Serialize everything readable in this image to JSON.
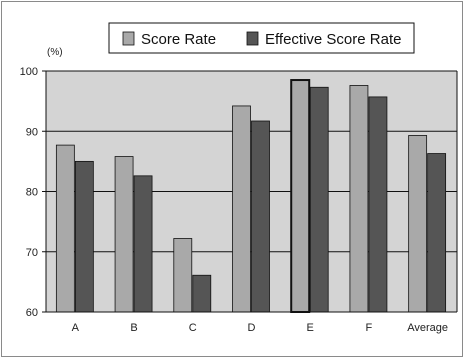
{
  "chart_data": {
    "type": "bar",
    "unit_label": "(%)",
    "categories": [
      "A",
      "B",
      "C",
      "D",
      "E",
      "F",
      "Average"
    ],
    "series": [
      {
        "name": "Score Rate",
        "color": "#a9a9a9",
        "values": [
          87.7,
          85.8,
          72.2,
          94.2,
          98.5,
          97.6,
          89.3
        ]
      },
      {
        "name": "Effective Score Rate",
        "color": "#555555",
        "values": [
          85.0,
          82.6,
          66.1,
          91.7,
          97.3,
          95.7,
          86.3
        ]
      }
    ],
    "ylim": [
      60,
      100
    ],
    "yticks": [
      60,
      70,
      80,
      90,
      100
    ],
    "highlighted_category": "E",
    "plot_background": "#d4d4d4",
    "grid": true,
    "legend_position": "top-center"
  }
}
